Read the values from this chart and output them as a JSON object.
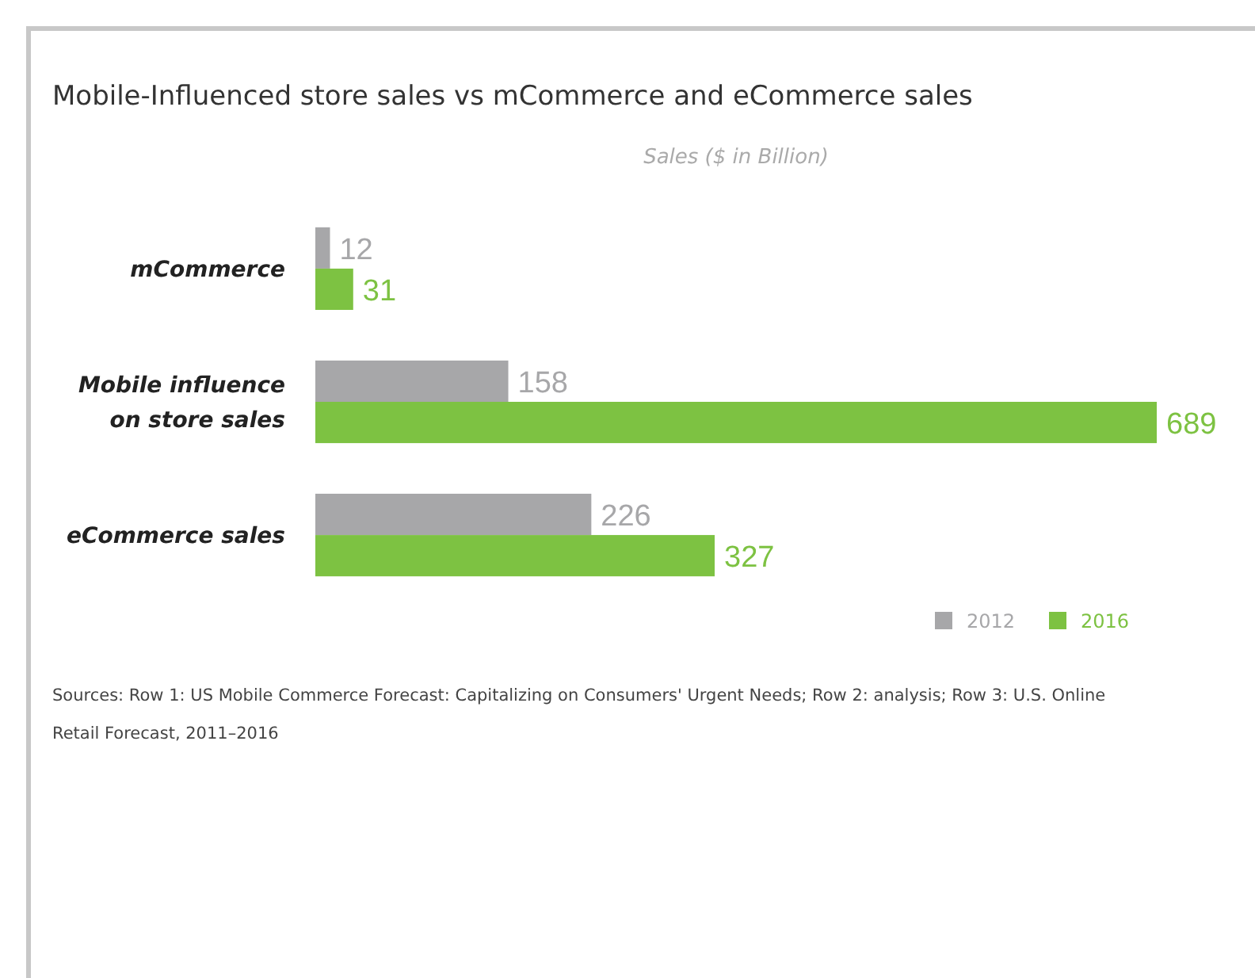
{
  "chart_data": {
    "type": "bar",
    "orientation": "horizontal",
    "title": "Mobile-Influenced store sales vs mCommerce and eCommerce sales",
    "xlabel": "Sales ($ in Billion)",
    "categories": [
      "mCommerce",
      "Mobile influence on store sales",
      "eCommerce sales"
    ],
    "series": [
      {
        "name": "2012",
        "color": "#a7a7a9",
        "values": [
          12,
          158,
          226
        ]
      },
      {
        "name": "2016",
        "color": "#7dc242",
        "values": [
          31,
          689,
          327
        ]
      }
    ],
    "data_labels": true,
    "legend": "bottom right",
    "annotations": [
      "Sources: Row 1: US Mobile Commerce Forecast: Capitalizing on Consumers' Urgent Needs; Row 2: analysis; Row 3: U.S. Online Retail Forecast, 2011–2016"
    ]
  }
}
